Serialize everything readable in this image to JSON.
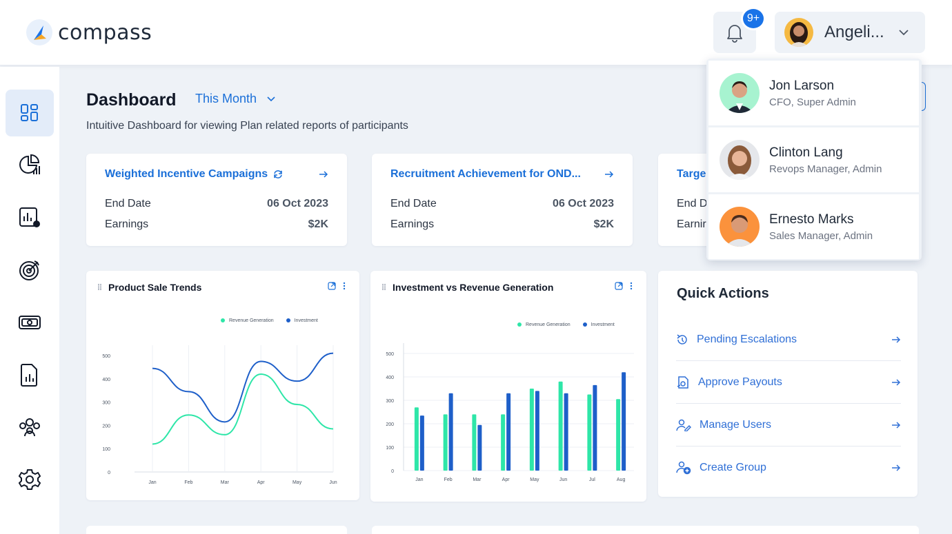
{
  "app": {
    "logo_text": "compass",
    "brand_color": "#1a73e8"
  },
  "header": {
    "notifications_badge": "9+",
    "user_name": "Angeli...",
    "icons": {
      "bell": "bell-icon",
      "chevron": "chevron-down-icon"
    }
  },
  "sidebar": {
    "items": [
      {
        "icon": "dashboard-icon",
        "active": true
      },
      {
        "icon": "pie-report-icon",
        "active": false
      },
      {
        "icon": "report-settings-icon",
        "active": false
      },
      {
        "icon": "target-icon",
        "active": false
      },
      {
        "icon": "money-icon",
        "active": false
      },
      {
        "icon": "document-chart-icon",
        "active": false
      },
      {
        "icon": "team-icon",
        "active": false
      },
      {
        "icon": "settings-icon",
        "active": false
      }
    ]
  },
  "page": {
    "title": "Dashboard",
    "period": "This Month",
    "subtitle": "Intuitive Dashboard for viewing Plan related reports of participants"
  },
  "campaigns": [
    {
      "title": "Weighted Incentive Campaigns",
      "end_date_label": "End Date",
      "end_date": "06 Oct 2023",
      "earnings_label": "Earnings",
      "earnings": "$2K"
    },
    {
      "title": "Recruitment Achievement for OND...",
      "end_date_label": "End Date",
      "end_date": "06 Oct 2023",
      "earnings_label": "Earnings",
      "earnings": "$2K"
    },
    {
      "title": "Targe",
      "end_date_label": "End D",
      "end_date": "",
      "earnings_label": "Earnir",
      "earnings": ""
    }
  ],
  "charts": {
    "line_title": "Product Sale Trends",
    "bar_title": "Investment vs Revenue Generation",
    "legend_revenue": "Revenue Generation",
    "legend_investment": "Investment"
  },
  "chart_data": [
    {
      "type": "line",
      "title": "Product Sale Trends",
      "categories": [
        "Jan",
        "Feb",
        "Mar",
        "Apr",
        "May",
        "Jun"
      ],
      "yticks": [
        "0",
        "100",
        "200",
        "300",
        "400",
        "500"
      ],
      "ylim": [
        0,
        500
      ],
      "series": [
        {
          "name": "Revenue Generation",
          "color": "#2ee6a8",
          "values": [
            120,
            245,
            160,
            420,
            290,
            185
          ]
        },
        {
          "name": "Investment",
          "color": "#1e5fc9",
          "values": [
            445,
            345,
            215,
            475,
            390,
            510
          ]
        }
      ],
      "legend": "top-right",
      "grid": "vertical"
    },
    {
      "type": "bar",
      "title": "Investment vs Revenue Generation",
      "categories": [
        "Jan",
        "Feb",
        "Mar",
        "Apr",
        "May",
        "Jun",
        "Jul",
        "Aug"
      ],
      "yticks": [
        "0",
        "100",
        "200",
        "300",
        "400",
        "500"
      ],
      "ylim": [
        0,
        500
      ],
      "series": [
        {
          "name": "Revenue Generation",
          "color": "#2ee6a8",
          "values": [
            270,
            240,
            240,
            240,
            350,
            380,
            325,
            305
          ]
        },
        {
          "name": "Investment",
          "color": "#1e5fc9",
          "values": [
            235,
            330,
            195,
            330,
            340,
            330,
            365,
            420
          ]
        }
      ],
      "legend": "top-right",
      "grid": "horizontal"
    }
  ],
  "quick_actions": {
    "title": "Quick Actions",
    "items": [
      {
        "label": "Pending Escalations",
        "icon": "escalation-icon"
      },
      {
        "label": "Approve Payouts",
        "icon": "payout-icon"
      },
      {
        "label": "Manage Users",
        "icon": "users-edit-icon"
      },
      {
        "label": "Create Group",
        "icon": "add-group-icon"
      }
    ]
  },
  "user_dropdown": {
    "items": [
      {
        "name": "Jon Larson",
        "role": "CFO, Super Admin",
        "bg": "#a7f3d0"
      },
      {
        "name": "Clinton Lang",
        "role": "Revops Manager, Admin",
        "bg": "#e5e7eb"
      },
      {
        "name": "Ernesto Marks",
        "role": "Sales Manager, Admin",
        "bg": "#fb923c"
      }
    ]
  }
}
